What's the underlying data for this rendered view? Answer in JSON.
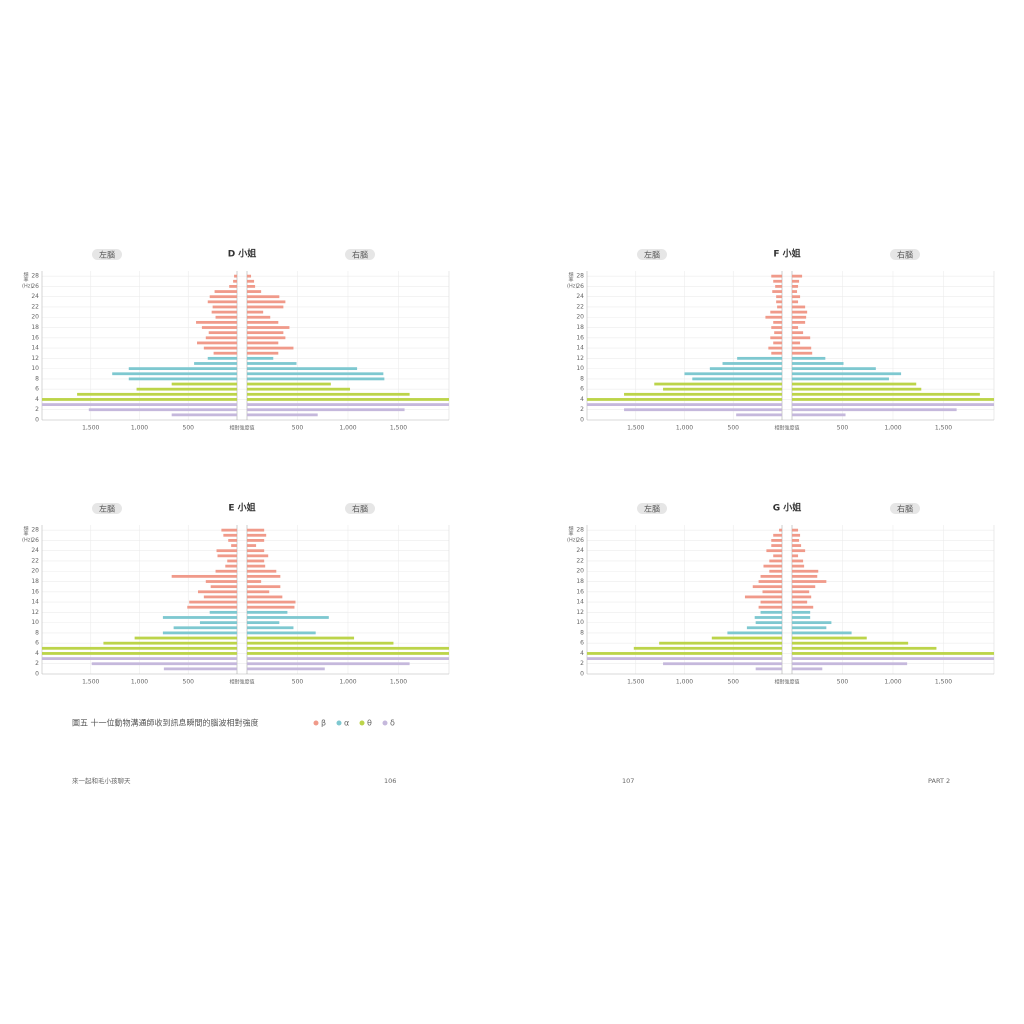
{
  "legend": [
    {
      "name": "β",
      "color": "#f09a8a"
    },
    {
      "name": "α",
      "color": "#7ec8d0"
    },
    {
      "name": "θ",
      "color": "#bcd44a"
    },
    {
      "name": "δ",
      "color": "#c5b8dc"
    }
  ],
  "caption": "圖五 十一位動物溝通師收到訊息瞬間的腦波相對強度",
  "footer": {
    "left": "來一起和毛小孩聊天",
    "page_left": "106",
    "page_right": "107",
    "part": "PART 2"
  },
  "chart_data": [
    {
      "type": "butterfly",
      "title": "D 小姐",
      "x_label": "相對強度值",
      "y_label": "頻率",
      "y_unit": "(Hz)",
      "y": [
        1,
        2,
        3,
        4,
        5,
        6,
        7,
        8,
        9,
        10,
        11,
        12,
        13,
        14,
        15,
        16,
        17,
        18,
        19,
        20,
        21,
        22,
        23,
        24,
        25,
        26,
        27,
        28
      ],
      "colors": [
        "#c5b8dc",
        "#c5b8dc",
        "#c5b8dc",
        "#bcd44a",
        "#bcd44a",
        "#bcd44a",
        "#bcd44a",
        "#7ec8d0",
        "#7ec8d0",
        "#7ec8d0",
        "#7ec8d0",
        "#7ec8d0",
        "#f09a8a",
        "#f09a8a",
        "#f09a8a",
        "#f09a8a",
        "#f09a8a",
        "#f09a8a",
        "#f09a8a",
        "#f09a8a",
        "#f09a8a",
        "#f09a8a",
        "#f09a8a",
        "#f09a8a",
        "#f09a8a",
        "#f09a8a",
        "#f09a8a",
        "#f09a8a"
      ],
      "series": [
        {
          "name": "左腦",
          "values": [
            670,
            1520,
            2000,
            2000,
            1640,
            1030,
            670,
            1110,
            1280,
            1110,
            440,
            300,
            240,
            340,
            410,
            320,
            290,
            360,
            420,
            220,
            260,
            250,
            300,
            280,
            230,
            80,
            40,
            30
          ]
        },
        {
          "name": "右腦",
          "values": [
            700,
            1560,
            2000,
            2000,
            1610,
            1020,
            830,
            1360,
            1350,
            1090,
            490,
            260,
            310,
            460,
            310,
            380,
            360,
            420,
            310,
            230,
            160,
            360,
            380,
            320,
            140,
            80,
            70,
            40
          ]
        }
      ],
      "xlim": [
        0,
        2000
      ],
      "xticks": [
        500,
        {
          "value": 1000,
          "label": "1,000"
        },
        {
          "value": 1500,
          "label": "1,500"
        }
      ],
      "ylim": [
        0,
        29
      ],
      "yticks": [
        0,
        2,
        4,
        6,
        8,
        10,
        12,
        14,
        16,
        18,
        20,
        22,
        24,
        26,
        28
      ]
    },
    {
      "type": "butterfly",
      "title": "F 小姐",
      "x_label": "相對強度值",
      "y_label": "頻率",
      "y_unit": "(Hz)",
      "y": [
        1,
        2,
        3,
        4,
        5,
        6,
        7,
        8,
        9,
        10,
        11,
        12,
        13,
        14,
        15,
        16,
        17,
        18,
        19,
        20,
        21,
        22,
        23,
        24,
        25,
        26,
        27,
        28
      ],
      "colors": [
        "#c5b8dc",
        "#c5b8dc",
        "#c5b8dc",
        "#bcd44a",
        "#bcd44a",
        "#bcd44a",
        "#bcd44a",
        "#7ec8d0",
        "#7ec8d0",
        "#7ec8d0",
        "#7ec8d0",
        "#7ec8d0",
        "#f09a8a",
        "#f09a8a",
        "#f09a8a",
        "#f09a8a",
        "#f09a8a",
        "#f09a8a",
        "#f09a8a",
        "#f09a8a",
        "#f09a8a",
        "#f09a8a",
        "#f09a8a",
        "#f09a8a",
        "#f09a8a",
        "#f09a8a",
        "#f09a8a",
        "#f09a8a"
      ],
      "series": [
        {
          "name": "左腦",
          "values": [
            470,
            1620,
            2000,
            2000,
            1620,
            1220,
            1310,
            920,
            1000,
            740,
            610,
            460,
            110,
            140,
            90,
            120,
            80,
            110,
            90,
            170,
            120,
            50,
            60,
            60,
            100,
            70,
            90,
            110
          ]
        },
        {
          "name": "右腦",
          "values": [
            530,
            1630,
            2000,
            2000,
            1860,
            1280,
            1230,
            960,
            1080,
            830,
            510,
            330,
            200,
            190,
            80,
            180,
            110,
            60,
            130,
            140,
            150,
            130,
            60,
            80,
            50,
            60,
            70,
            100
          ]
        }
      ],
      "xlim": [
        0,
        2000
      ],
      "xticks": [
        500,
        {
          "value": 1000,
          "label": "1,000"
        },
        {
          "value": 1500,
          "label": "1,500"
        }
      ],
      "ylim": [
        0,
        29
      ],
      "yticks": [
        0,
        2,
        4,
        6,
        8,
        10,
        12,
        14,
        16,
        18,
        20,
        22,
        24,
        26,
        28
      ]
    },
    {
      "type": "butterfly",
      "title": "E 小姐",
      "x_label": "相對強度值",
      "y_label": "頻率",
      "y_unit": "(Hz)",
      "y": [
        1,
        2,
        3,
        4,
        5,
        6,
        7,
        8,
        9,
        10,
        11,
        12,
        13,
        14,
        15,
        16,
        17,
        18,
        19,
        20,
        21,
        22,
        23,
        24,
        25,
        26,
        27,
        28
      ],
      "colors": [
        "#c5b8dc",
        "#c5b8dc",
        "#c5b8dc",
        "#bcd44a",
        "#bcd44a",
        "#bcd44a",
        "#bcd44a",
        "#7ec8d0",
        "#7ec8d0",
        "#7ec8d0",
        "#7ec8d0",
        "#7ec8d0",
        "#f09a8a",
        "#f09a8a",
        "#f09a8a",
        "#f09a8a",
        "#f09a8a",
        "#f09a8a",
        "#f09a8a",
        "#f09a8a",
        "#f09a8a",
        "#f09a8a",
        "#f09a8a",
        "#f09a8a",
        "#f09a8a",
        "#f09a8a",
        "#f09a8a",
        "#f09a8a"
      ],
      "series": [
        {
          "name": "左腦",
          "values": [
            750,
            1490,
            2000,
            2000,
            2000,
            1370,
            1050,
            760,
            650,
            380,
            760,
            280,
            510,
            490,
            340,
            400,
            270,
            320,
            670,
            220,
            120,
            100,
            200,
            210,
            60,
            90,
            140,
            160
          ]
        },
        {
          "name": "右腦",
          "values": [
            770,
            1610,
            2000,
            2000,
            2000,
            1450,
            1060,
            680,
            460,
            320,
            810,
            400,
            470,
            480,
            350,
            220,
            330,
            140,
            330,
            290,
            180,
            170,
            210,
            170,
            90,
            170,
            190,
            170
          ]
        }
      ],
      "xlim": [
        0,
        2000
      ],
      "xticks": [
        500,
        {
          "value": 1000,
          "label": "1,000"
        },
        {
          "value": 1500,
          "label": "1,500"
        }
      ],
      "ylim": [
        0,
        29
      ],
      "yticks": [
        0,
        2,
        4,
        6,
        8,
        10,
        12,
        14,
        16,
        18,
        20,
        22,
        24,
        26,
        28
      ]
    },
    {
      "type": "butterfly",
      "title": "G 小姐",
      "x_label": "相對強度值",
      "y_label": "頻率",
      "y_unit": "(Hz)",
      "y": [
        1,
        2,
        3,
        4,
        5,
        6,
        7,
        8,
        9,
        10,
        11,
        12,
        13,
        14,
        15,
        16,
        17,
        18,
        19,
        20,
        21,
        22,
        23,
        24,
        25,
        26,
        27,
        28
      ],
      "colors": [
        "#c5b8dc",
        "#c5b8dc",
        "#c5b8dc",
        "#bcd44a",
        "#bcd44a",
        "#bcd44a",
        "#bcd44a",
        "#7ec8d0",
        "#7ec8d0",
        "#7ec8d0",
        "#7ec8d0",
        "#7ec8d0",
        "#f09a8a",
        "#f09a8a",
        "#f09a8a",
        "#f09a8a",
        "#f09a8a",
        "#f09a8a",
        "#f09a8a",
        "#f09a8a",
        "#f09a8a",
        "#f09a8a",
        "#f09a8a",
        "#f09a8a",
        "#f09a8a",
        "#f09a8a",
        "#f09a8a",
        "#f09a8a"
      ],
      "series": [
        {
          "name": "左腦",
          "values": [
            270,
            1220,
            2000,
            2000,
            1520,
            1260,
            720,
            560,
            360,
            270,
            280,
            220,
            240,
            220,
            380,
            200,
            300,
            240,
            220,
            130,
            190,
            130,
            90,
            160,
            110,
            110,
            90,
            30
          ]
        },
        {
          "name": "右腦",
          "values": [
            300,
            1140,
            2000,
            2000,
            1430,
            1150,
            740,
            590,
            340,
            390,
            180,
            180,
            210,
            150,
            190,
            170,
            230,
            340,
            250,
            260,
            120,
            110,
            60,
            130,
            90,
            70,
            80,
            60
          ]
        }
      ],
      "xlim": [
        0,
        2000
      ],
      "xticks": [
        500,
        {
          "value": 1000,
          "label": "1,000"
        },
        {
          "value": 1500,
          "label": "1,500"
        }
      ],
      "ylim": [
        0,
        29
      ],
      "yticks": [
        0,
        2,
        4,
        6,
        8,
        10,
        12,
        14,
        16,
        18,
        20,
        22,
        24,
        26,
        28
      ]
    }
  ]
}
